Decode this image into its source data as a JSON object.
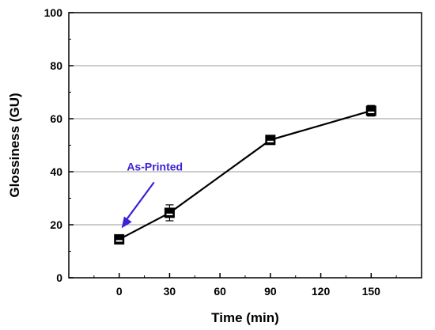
{
  "chart_data": {
    "type": "line",
    "title": "",
    "xlabel": "Time (min)",
    "ylabel": "Glossiness (GU)",
    "xlim": [
      -30,
      180
    ],
    "ylim": [
      0,
      100
    ],
    "xticks": [
      0,
      30,
      60,
      90,
      120,
      150
    ],
    "yticks": [
      0,
      20,
      40,
      60,
      80,
      100
    ],
    "grid": "horizontal",
    "series": [
      {
        "x": [
          0,
          30,
          90,
          150
        ],
        "y": [
          14.5,
          24.5,
          52,
          63
        ],
        "err": [
          1.5,
          3,
          1.5,
          2
        ],
        "color": "#000000",
        "marker": "square"
      }
    ],
    "annotation": {
      "text": "As-Printed",
      "color": "#3a22d6",
      "x": 0,
      "y": 14.5
    }
  }
}
